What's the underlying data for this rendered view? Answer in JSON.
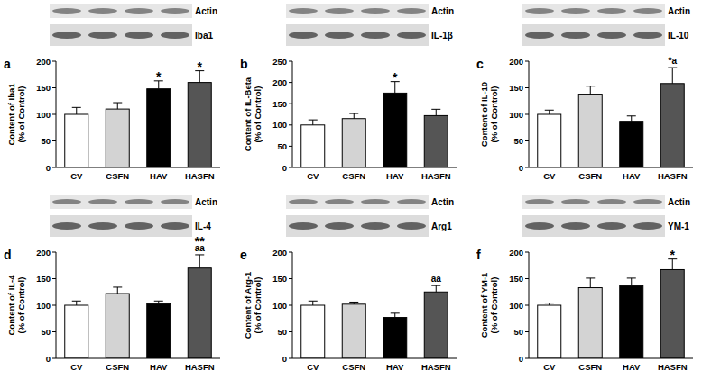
{
  "chart_data": [
    {
      "type": "bar",
      "title": "a",
      "blot_labels": [
        "Actin",
        "Iba1"
      ],
      "ylabel": [
        "Content of Iba1",
        "(% of Control)"
      ],
      "categories": [
        "CV",
        "CSFN",
        "HAV",
        "HASFN"
      ],
      "values": [
        100,
        110,
        148,
        160
      ],
      "errors": [
        13,
        12,
        15,
        22
      ],
      "colors": [
        "#ffffff",
        "#d3d3d3",
        "#000000",
        "#555555"
      ],
      "ylim": [
        0,
        200
      ],
      "yticks": [
        0,
        50,
        100,
        150,
        200
      ],
      "grid": false,
      "annotations": [
        {
          "category": "HAV",
          "lines": [
            "*"
          ]
        },
        {
          "category": "HASFN",
          "lines": [
            "*"
          ]
        }
      ]
    },
    {
      "type": "bar",
      "title": "b",
      "blot_labels": [
        "Actin",
        "IL-1β"
      ],
      "ylabel": [
        "Content of IL-Beta",
        "(% of Control)"
      ],
      "categories": [
        "CV",
        "CSFN",
        "HAV",
        "HASFN"
      ],
      "values": [
        100,
        115,
        175,
        122
      ],
      "errors": [
        12,
        12,
        27,
        15
      ],
      "colors": [
        "#ffffff",
        "#d3d3d3",
        "#000000",
        "#555555"
      ],
      "ylim": [
        0,
        250
      ],
      "yticks": [
        0,
        50,
        100,
        150,
        200,
        250
      ],
      "grid": false,
      "annotations": [
        {
          "category": "HAV",
          "lines": [
            "*"
          ]
        }
      ]
    },
    {
      "type": "bar",
      "title": "c",
      "blot_labels": [
        "Actin",
        "IL-10"
      ],
      "ylabel": [
        "Content of IL-10",
        "(% of Control)"
      ],
      "categories": [
        "CV",
        "CSFN",
        "HAV",
        "HASFN"
      ],
      "values": [
        100,
        138,
        87,
        158
      ],
      "errors": [
        8,
        15,
        10,
        30
      ],
      "colors": [
        "#ffffff",
        "#d3d3d3",
        "#000000",
        "#555555"
      ],
      "ylim": [
        0,
        200
      ],
      "yticks": [
        0,
        50,
        100,
        150,
        200
      ],
      "grid": false,
      "annotations": [
        {
          "category": "HASFN",
          "lines": [
            "*a"
          ]
        }
      ]
    },
    {
      "type": "bar",
      "title": "d",
      "blot_labels": [
        "Actin",
        "IL-4"
      ],
      "ylabel": [
        "Content of IL-4",
        "(% of Control)"
      ],
      "categories": [
        "CV",
        "CSFN",
        "HAV",
        "HASFN"
      ],
      "values": [
        100,
        122,
        103,
        170
      ],
      "errors": [
        8,
        12,
        5,
        25
      ],
      "colors": [
        "#ffffff",
        "#d3d3d3",
        "#000000",
        "#555555"
      ],
      "ylim": [
        0,
        200
      ],
      "yticks": [
        0,
        50,
        100,
        150,
        200
      ],
      "grid": false,
      "annotations": [
        {
          "category": "HASFN",
          "lines": [
            "**",
            "aa"
          ]
        }
      ]
    },
    {
      "type": "bar",
      "title": "e",
      "blot_labels": [
        "Actin",
        "Arg1"
      ],
      "ylabel": [
        "Content of Arg-1",
        "(% of Control)"
      ],
      "categories": [
        "CV",
        "CSFN",
        "HAV",
        "HASFN"
      ],
      "values": [
        100,
        102,
        77,
        125
      ],
      "errors": [
        8,
        4,
        8,
        12
      ],
      "colors": [
        "#ffffff",
        "#d3d3d3",
        "#000000",
        "#555555"
      ],
      "ylim": [
        0,
        200
      ],
      "yticks": [
        0,
        50,
        100,
        150,
        200
      ],
      "grid": false,
      "annotations": [
        {
          "category": "HASFN",
          "lines": [
            "aa"
          ]
        }
      ]
    },
    {
      "type": "bar",
      "title": "f",
      "blot_labels": [
        "Actin",
        "YM-1"
      ],
      "ylabel": [
        "Content of YM-1",
        "(% of Control)"
      ],
      "categories": [
        "CV",
        "CSFN",
        "HAV",
        "HASFN"
      ],
      "values": [
        100,
        133,
        137,
        167
      ],
      "errors": [
        4,
        18,
        14,
        20
      ],
      "colors": [
        "#ffffff",
        "#d3d3d3",
        "#000000",
        "#555555"
      ],
      "ylim": [
        0,
        200
      ],
      "yticks": [
        0,
        50,
        100,
        150,
        200
      ],
      "grid": false,
      "annotations": [
        {
          "category": "HASFN",
          "lines": [
            "*"
          ]
        }
      ]
    }
  ]
}
